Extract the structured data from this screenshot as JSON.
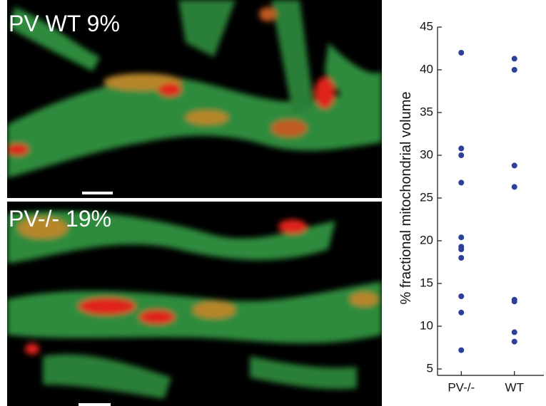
{
  "panels": [
    {
      "label": "PV WT 9%"
    },
    {
      "label": "PV-/- 19%"
    }
  ],
  "chart_data": {
    "type": "strip",
    "ylabel": "% fractional mitochondrial volume",
    "categories": [
      "PV-/-",
      "WT"
    ],
    "values": [
      [
        42,
        30.8,
        30,
        26.8,
        20.4,
        19.3,
        19,
        18,
        13.5,
        11.6,
        7.2
      ],
      [
        41.3,
        40,
        28.8,
        26.3,
        13.1,
        12.9,
        9.3,
        8.2
      ]
    ],
    "color": "#2b3f9c",
    "ylim": [
      5,
      45
    ],
    "yticks": [
      5,
      10,
      15,
      20,
      25,
      30,
      35,
      40,
      45
    ]
  }
}
